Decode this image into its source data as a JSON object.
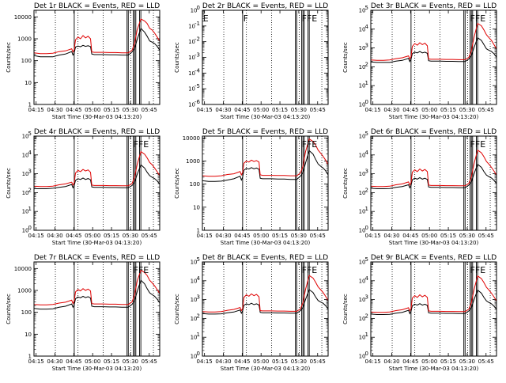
{
  "chart_data": {
    "type": "line",
    "layout": "3x3 grid",
    "x_tick_labels": [
      "04:15",
      "04:30",
      "04:45",
      "05:00",
      "05:15",
      "05:30",
      "05:45"
    ],
    "x_range_minutes": [
      0,
      100
    ],
    "xlabel": "Start Time (30-Mar-03 04:13:20)",
    "ylabel": "Counts/sec",
    "series_colors": {
      "events": "#000000",
      "lld": "#e00000"
    },
    "solid_marker_minutes": [
      0,
      32,
      74,
      75,
      79,
      80,
      81,
      84,
      85
    ],
    "dotted_marker_minutes": [
      17,
      35,
      55,
      77,
      95
    ],
    "series_x_minutes": [
      0,
      5,
      10,
      15,
      20,
      25,
      30,
      31,
      32,
      33,
      35,
      37,
      39,
      41,
      43,
      45,
      46,
      47,
      48,
      50,
      55,
      60,
      65,
      70,
      75,
      78,
      80,
      82,
      85,
      88,
      90,
      92,
      94,
      96,
      98,
      100
    ],
    "panels": [
      {
        "title": "Det 1r BLACK = Events, RED = LLD",
        "yscale": "log",
        "ylim": [
          1,
          20000
        ],
        "ytick_labels": [
          "1",
          "10",
          "100",
          "1000",
          "10000"
        ],
        "yticks_decades": [
          0,
          1,
          2,
          3,
          4
        ],
        "flags": [],
        "series": [
          {
            "name": "Events",
            "values": [
              170,
              150,
              150,
              150,
              180,
              200,
              260,
              180,
              230,
              420,
              470,
              430,
              500,
              450,
              480,
              440,
              200,
              195,
              190,
              190,
              190,
              185,
              185,
              180,
              180,
              250,
              350,
              900,
              3000,
              2000,
              1300,
              800,
              700,
              600,
              450,
              300
            ]
          },
          {
            "name": "LLD",
            "values": [
              230,
              210,
              210,
              220,
              260,
              280,
              350,
              250,
              320,
              900,
              1200,
              1000,
              1400,
              1100,
              1300,
              1000,
              250,
              245,
              240,
              240,
              240,
              235,
              235,
              230,
              230,
              300,
              600,
              2500,
              8000,
              6500,
              5000,
              3000,
              2500,
              1800,
              1200,
              800
            ]
          }
        ]
      },
      {
        "title": "Det 2r BLACK = Events, RED = LLD",
        "yscale": "log",
        "ylim": [
          1e-06,
          1
        ],
        "ytick_labels": [
          "10",
          "10",
          "10",
          "10",
          "10",
          "10",
          "10"
        ],
        "ytick_exponents": [
          "0",
          "-1",
          "-2",
          "-3",
          "-4",
          "-5",
          "-6"
        ],
        "yticks_decades": [
          0,
          -1,
          -2,
          -3,
          -4,
          -5,
          -6
        ],
        "flags": [
          {
            "text": "E",
            "x_minute": 0.5
          },
          {
            "text": "F",
            "x_minute": 32.5
          },
          {
            "text": "FFE",
            "x_minute": 79
          }
        ],
        "series": []
      },
      {
        "title": "Det 3r BLACK = Events, RED = LLD",
        "yscale": "log",
        "ylim": [
          1,
          100000
        ],
        "ytick_labels": [
          "10",
          "10",
          "10",
          "10",
          "10",
          "10"
        ],
        "ytick_exponents": [
          "0",
          "1",
          "2",
          "3",
          "4",
          "5"
        ],
        "yticks_decades": [
          0,
          1,
          2,
          3,
          4,
          5
        ],
        "flags": [
          {
            "text": "FFE",
            "x_minute": 79
          }
        ],
        "series": [
          {
            "name": "Events",
            "values": [
              180,
              170,
              170,
              170,
              200,
              220,
              280,
              190,
              250,
              500,
              600,
              550,
              650,
              550,
              600,
              520,
              210,
              205,
              200,
              200,
              200,
              195,
              195,
              190,
              190,
              260,
              380,
              1000,
              3500,
              2500,
              1500,
              900,
              750,
              650,
              500,
              320
            ]
          },
          {
            "name": "LLD",
            "values": [
              230,
              220,
              220,
              230,
              270,
              300,
              380,
              260,
              340,
              1200,
              1700,
              1400,
              1900,
              1500,
              1800,
              1300,
              260,
              255,
              250,
              250,
              250,
              245,
              245,
              240,
              240,
              320,
              700,
              3500,
              20000,
              15000,
              9000,
              5000,
              3500,
              2500,
              1500,
              900
            ]
          }
        ]
      },
      {
        "title": "Det 4r BLACK = Events, RED = LLD",
        "yscale": "log",
        "ylim": [
          1,
          100000
        ],
        "ytick_labels": [
          "10",
          "10",
          "10",
          "10",
          "10",
          "10"
        ],
        "ytick_exponents": [
          "0",
          "1",
          "2",
          "3",
          "4",
          "5"
        ],
        "yticks_decades": [
          0,
          1,
          2,
          3,
          4,
          5
        ],
        "flags": [
          {
            "text": "FFE",
            "x_minute": 79
          }
        ],
        "series": [
          {
            "name": "Events",
            "values": [
              160,
              160,
              160,
              170,
              190,
              210,
              270,
              180,
              240,
              450,
              550,
              500,
              600,
              500,
              560,
              480,
              200,
              195,
              190,
              190,
              190,
              185,
              185,
              180,
              180,
              240,
              350,
              900,
              3000,
              2000,
              1200,
              800,
              650,
              550,
              420,
              280
            ]
          },
          {
            "name": "LLD",
            "values": [
              220,
              210,
              210,
              220,
              260,
              290,
              360,
              250,
              330,
              1100,
              1500,
              1300,
              1700,
              1400,
              1600,
              1200,
              250,
              245,
              240,
              240,
              240,
              235,
              235,
              230,
              230,
              300,
              650,
              3000,
              15000,
              11000,
              7000,
              4000,
              3000,
              2000,
              1300,
              800
            ]
          }
        ]
      },
      {
        "title": "Det 5r BLACK = Events, RED = LLD",
        "yscale": "log",
        "ylim": [
          1,
          12000
        ],
        "ytick_labels": [
          "1",
          "10",
          "100",
          "1000",
          "10000"
        ],
        "yticks_decades": [
          0,
          1,
          2,
          3,
          4
        ],
        "flags": [
          {
            "text": "FFE",
            "x_minute": 79
          }
        ],
        "series": [
          {
            "name": "Events",
            "values": [
              140,
              130,
              130,
              135,
              150,
              170,
              220,
              150,
              200,
              400,
              480,
              450,
              520,
              460,
              500,
              440,
              180,
              175,
              170,
              170,
              170,
              165,
              165,
              160,
              160,
              220,
              320,
              800,
              2800,
              2000,
              1200,
              750,
              600,
              500,
              380,
              250
            ]
          },
          {
            "name": "LLD",
            "values": [
              230,
              220,
              220,
              230,
              260,
              280,
              350,
              250,
              320,
              800,
              1000,
              900,
              1100,
              950,
              1050,
              900,
              250,
              245,
              240,
              240,
              240,
              235,
              235,
              230,
              230,
              300,
              600,
              2500,
              9000,
              7000,
              5000,
              3000,
              2200,
              1600,
              1100,
              700
            ]
          }
        ]
      },
      {
        "title": "Det 6r BLACK = Events, RED = LLD",
        "yscale": "log",
        "ylim": [
          1,
          100000
        ],
        "ytick_labels": [
          "10",
          "10",
          "10",
          "10",
          "10",
          "10"
        ],
        "ytick_exponents": [
          "0",
          "1",
          "2",
          "3",
          "4",
          "5"
        ],
        "yticks_decades": [
          0,
          1,
          2,
          3,
          4,
          5
        ],
        "flags": [
          {
            "text": "FFE",
            "x_minute": 79
          }
        ],
        "series": [
          {
            "name": "Events",
            "values": [
              170,
              160,
              160,
              165,
              190,
              210,
              260,
              180,
              240,
              480,
              580,
              520,
              620,
              520,
              580,
              500,
              200,
              195,
              190,
              190,
              190,
              185,
              185,
              180,
              180,
              250,
              360,
              950,
              3200,
              2200,
              1300,
              850,
              700,
              600,
              450,
              300
            ]
          },
          {
            "name": "LLD",
            "values": [
              220,
              210,
              210,
              220,
              260,
              290,
              370,
              250,
              330,
              1200,
              1600,
              1300,
              1800,
              1400,
              1700,
              1300,
              250,
              245,
              240,
              240,
              240,
              235,
              235,
              230,
              230,
              310,
              680,
              3200,
              18000,
              13000,
              8000,
              4500,
              3200,
              2200,
              1400,
              850
            ]
          }
        ]
      },
      {
        "title": "Det 7r BLACK = Events, RED = LLD",
        "yscale": "log",
        "ylim": [
          1,
          20000
        ],
        "ytick_labels": [
          "1",
          "10",
          "100",
          "1000",
          "10000"
        ],
        "yticks_decades": [
          0,
          1,
          2,
          3,
          4
        ],
        "flags": [
          {
            "text": "FFE",
            "x_minute": 79
          }
        ],
        "series": [
          {
            "name": "Events",
            "values": [
              150,
              140,
              140,
              145,
              170,
              190,
              240,
              170,
              220,
              420,
              500,
              460,
              540,
              470,
              520,
              450,
              190,
              185,
              180,
              180,
              180,
              175,
              175,
              170,
              170,
              230,
              340,
              850,
              2900,
              2000,
              1200,
              780,
              640,
              540,
              400,
              270
            ]
          },
          {
            "name": "LLD",
            "values": [
              230,
              220,
              220,
              230,
              265,
              290,
              360,
              250,
              330,
              850,
              1100,
              950,
              1200,
              1000,
              1150,
              950,
              250,
              245,
              240,
              240,
              240,
              235,
              235,
              230,
              230,
              300,
              620,
              2600,
              8500,
              6500,
              4800,
              2900,
              2200,
              1600,
              1100,
              720
            ]
          }
        ]
      },
      {
        "title": "Det 8r BLACK = Events, RED = LLD",
        "yscale": "log",
        "ylim": [
          1,
          100000
        ],
        "ytick_labels": [
          "10",
          "10",
          "10",
          "10",
          "10",
          "10"
        ],
        "ytick_exponents": [
          "0",
          "1",
          "2",
          "3",
          "4",
          "5"
        ],
        "yticks_decades": [
          0,
          1,
          2,
          3,
          4,
          5
        ],
        "flags": [
          {
            "text": "FFE",
            "x_minute": 79
          }
        ],
        "series": [
          {
            "name": "Events",
            "values": [
              180,
              170,
              170,
              175,
              200,
              220,
              280,
              190,
              250,
              500,
              600,
              540,
              640,
              540,
              600,
              520,
              210,
              205,
              200,
              200,
              200,
              195,
              195,
              190,
              190,
              260,
              380,
              1000,
              3400,
              2400,
              1400,
              900,
              740,
              640,
              480,
              320
            ]
          },
          {
            "name": "LLD",
            "values": [
              230,
              220,
              220,
              230,
              270,
              300,
              380,
              260,
              340,
              1300,
              1800,
              1500,
              2000,
              1600,
              1900,
              1400,
              260,
              255,
              250,
              250,
              250,
              245,
              245,
              240,
              240,
              320,
              700,
              3400,
              19000,
              14000,
              8500,
              4800,
              3400,
              2400,
              1500,
              900
            ]
          }
        ]
      },
      {
        "title": "Det 9r BLACK = Events, RED = LLD",
        "yscale": "log",
        "ylim": [
          1,
          100000
        ],
        "ytick_labels": [
          "10",
          "10",
          "10",
          "10",
          "10",
          "10"
        ],
        "ytick_exponents": [
          "0",
          "1",
          "2",
          "3",
          "4",
          "5"
        ],
        "yticks_decades": [
          0,
          1,
          2,
          3,
          4,
          5
        ],
        "flags": [
          {
            "text": "FFE",
            "x_minute": 79
          }
        ],
        "series": [
          {
            "name": "Events",
            "values": [
              170,
              160,
              160,
              165,
              190,
              210,
              270,
              180,
              240,
              470,
              570,
              510,
              610,
              510,
              570,
              490,
              200,
              195,
              190,
              190,
              190,
              185,
              185,
              180,
              180,
              250,
              360,
              950,
              3200,
              2200,
              1300,
              850,
              700,
              600,
              450,
              300
            ]
          },
          {
            "name": "LLD",
            "values": [
              220,
              210,
              210,
              220,
              260,
              290,
              370,
              250,
              330,
              1200,
              1600,
              1300,
              1800,
              1400,
              1700,
              1300,
              250,
              245,
              240,
              240,
              240,
              235,
              235,
              230,
              230,
              310,
              680,
              3200,
              18000,
              13000,
              8000,
              4500,
              3200,
              2200,
              1400,
              850
            ]
          }
        ]
      }
    ]
  }
}
